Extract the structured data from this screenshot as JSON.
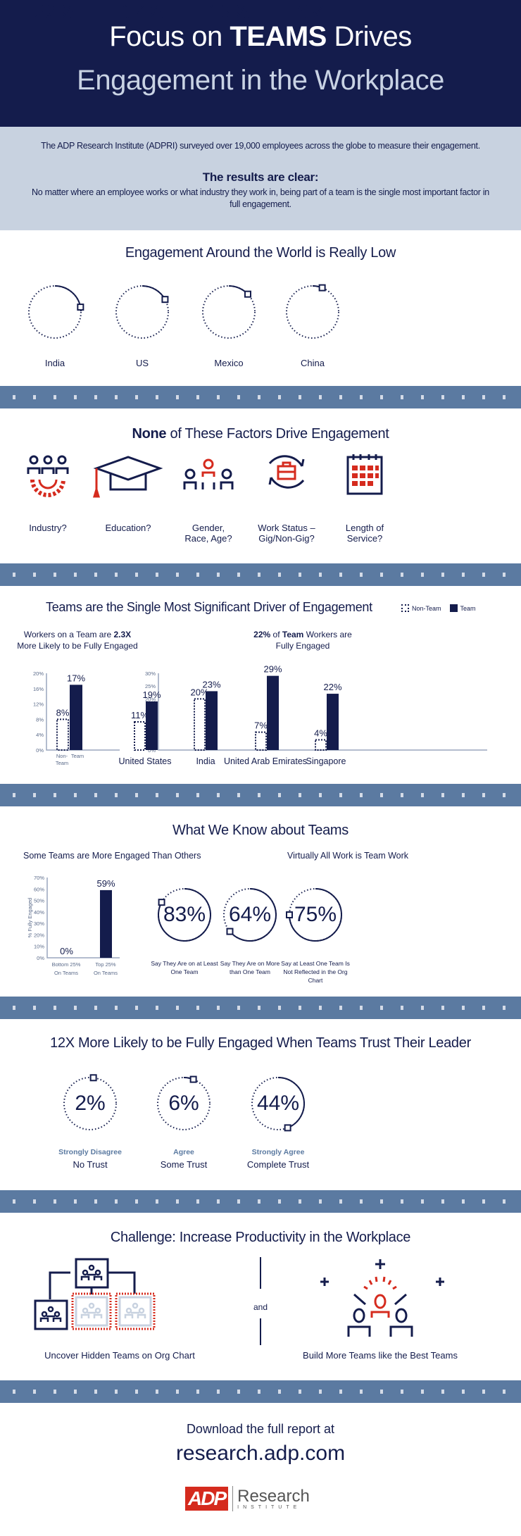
{
  "header": {
    "title_pre": "Focus on ",
    "title_bold": "TEAMS",
    "title_post": " Drives",
    "title_line2": "Engagement in the Workplace"
  },
  "intro": {
    "text": "The ADP Research Institute (ADPRI) surveyed over 19,000 employees across the globe to measure their engagement.",
    "heading": "The results are clear:",
    "body": "No matter where an employee works or what industry they work in, being part of a team is the single most important factor in full engagement."
  },
  "world": {
    "title": "Engagement Around the World is Really Low",
    "items": [
      {
        "value": "22%",
        "pct": 22,
        "label": "India"
      },
      {
        "value": "17%",
        "pct": 17,
        "label": "US"
      },
      {
        "value": "13%",
        "pct": 13,
        "label": "Mexico"
      },
      {
        "value": "6%",
        "pct": 6,
        "label": "China"
      }
    ]
  },
  "factors": {
    "title_bold": "None",
    "title_rest": " of These Factors Drive Engagement",
    "items": [
      {
        "icon": "industry-gear-people-icon",
        "label": "Industry?"
      },
      {
        "icon": "graduation-cap-icon",
        "label": "Education?"
      },
      {
        "icon": "people-group-icon",
        "label": "Gender, Race, Age?"
      },
      {
        "icon": "briefcase-cycle-icon",
        "label": "Work Status – Gig/Non-Gig?"
      },
      {
        "icon": "calendar-icon",
        "label": "Length of Service?"
      }
    ]
  },
  "drivers": {
    "title": "Teams are the Single Most Significant Driver of Engagement",
    "legend": {
      "non_team": "Non-Team",
      "team": "Team"
    },
    "left_title_pre": "Workers on a Team are ",
    "left_title_bold": "2.3X",
    "left_title_post": " More Likely to be Fully Engaged",
    "right_title_bold1": "22%",
    "right_title_mid": " of ",
    "right_title_bold2": "Team",
    "right_title_post": " Workers are Fully Engaged"
  },
  "know": {
    "title": "What We Know about Teams",
    "left_title": "Some Teams are More Engaged Than Others",
    "right_title": "Virtually All Work is Team Work",
    "circles": [
      {
        "value": "83%",
        "pct": 83,
        "label": "Say They Are on at Least One Team"
      },
      {
        "value": "64%",
        "pct": 64,
        "label": "Say They Are on More than One Team"
      },
      {
        "value": "75%",
        "pct": 75,
        "label": "Say at Least One Team Is Not Reflected in the Org Chart"
      }
    ]
  },
  "trust": {
    "title": "12X More Likely to be Fully Engaged When Teams Trust Their Leader",
    "items": [
      {
        "value": "2%",
        "pct": 2,
        "sub": "Strongly Disagree",
        "label": "No Trust"
      },
      {
        "value": "6%",
        "pct": 6,
        "sub": "Agree",
        "label": "Some Trust"
      },
      {
        "value": "44%",
        "pct": 44,
        "sub": "Strongly Agree",
        "label": "Complete Trust"
      }
    ]
  },
  "challenge": {
    "title": "Challenge: Increase Productivity in the Workplace",
    "left_label": "Uncover Hidden Teams on Org Chart",
    "and": "and",
    "right_label": "Build More Teams like the Best Teams"
  },
  "footer": {
    "download": "Download the full report at",
    "url": "research.adp.com",
    "logo_adp": "ADP",
    "logo_research": "Research",
    "logo_institute": "INSTITUTE"
  },
  "colors": {
    "navy": "#141c4c",
    "band": "#5b7aa1",
    "light": "#c8d2e0",
    "red": "#d52b1e",
    "steel": "#5b7aa1"
  },
  "chart_data": [
    {
      "type": "bar",
      "categories": [
        "Non-Team",
        "Team"
      ],
      "values": [
        8,
        17
      ],
      "labels": [
        "8%",
        "17%"
      ],
      "ylim": [
        0,
        20
      ],
      "yticks": [
        "0%",
        "4%",
        "8%",
        "12%",
        "16%",
        "20%"
      ],
      "xticklabels": [
        "Non- Team",
        "Team"
      ]
    },
    {
      "type": "bar",
      "categories": [
        "United States",
        "India",
        "United Arab Emirates",
        "Singapore"
      ],
      "ylim": [
        0,
        30
      ],
      "yticks": [
        "0%",
        "5%",
        "10%",
        "15%",
        "20%",
        "25%",
        "30%"
      ],
      "series": [
        {
          "name": "Non-Team",
          "values": [
            11,
            20,
            7,
            4
          ],
          "labels": [
            "11%",
            "20%",
            "7%",
            "4%"
          ]
        },
        {
          "name": "Team",
          "values": [
            19,
            23,
            29,
            22
          ],
          "labels": [
            "19%",
            "23%",
            "29%",
            "22%"
          ]
        }
      ]
    },
    {
      "type": "bar",
      "categories": [
        "Bottom 25% On Teams",
        "Top 25% On Teams"
      ],
      "values": [
        0,
        59
      ],
      "labels": [
        "0%",
        "59%"
      ],
      "ylim": [
        0,
        70
      ],
      "ylabel": "% Fully Engaged",
      "yticks": [
        "0%",
        "10%",
        "20%",
        "30%",
        "40%",
        "50%",
        "60%",
        "70%"
      ],
      "xticklabels": [
        "Bottom 25%",
        "Top 25%"
      ],
      "xticklabels2": [
        "On Teams",
        "On Teams"
      ]
    }
  ]
}
